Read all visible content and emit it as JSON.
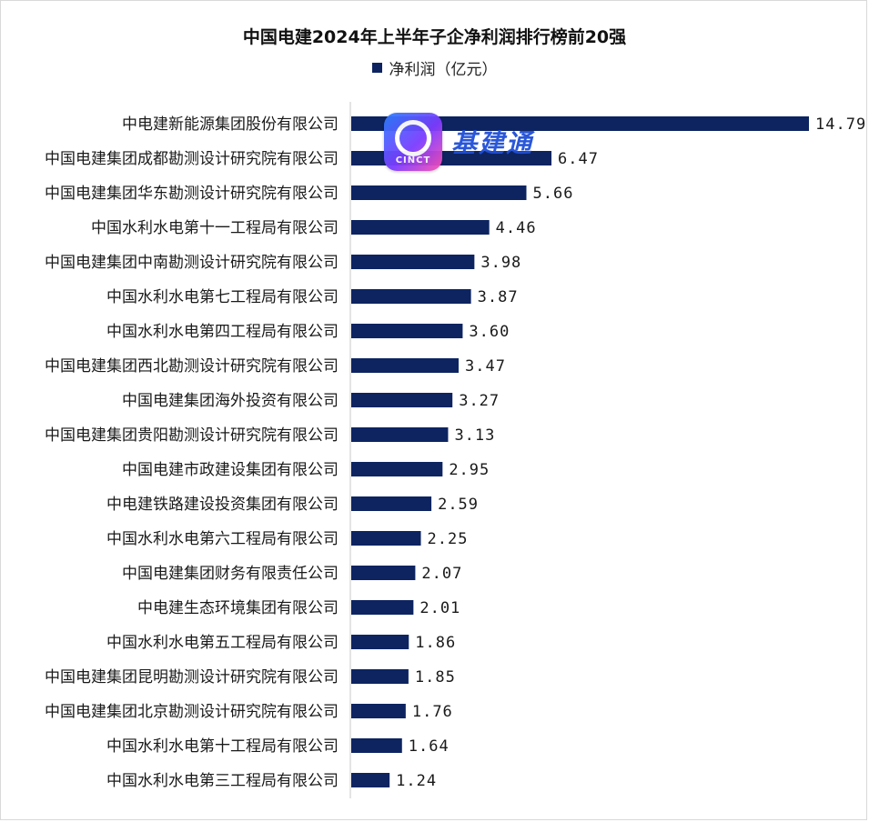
{
  "chart_data": {
    "type": "bar",
    "orientation": "horizontal",
    "title": "中国电建2024年上半年子企净利润排行榜前20强",
    "xlabel": "",
    "ylabel": "",
    "xlim": [
      0,
      14.79
    ],
    "grid": false,
    "legend_position": "top-center",
    "bar_color": "#0d2461",
    "categories": [
      "中电建新能源集团股份有限公司",
      "中国电建集团成都勘测设计研究院有限公司",
      "中国电建集团华东勘测设计研究院有限公司",
      "中国水利水电第十一工程局有限公司",
      "中国电建集团中南勘测设计研究院有限公司",
      "中国水利水电第七工程局有限公司",
      "中国水利水电第四工程局有限公司",
      "中国电建集团西北勘测设计研究院有限公司",
      "中国电建集团海外投资有限公司",
      "中国电建集团贵阳勘测设计研究院有限公司",
      "中国电建市政建设集团有限公司",
      "中电建铁路建设投资集团有限公司",
      "中国水利水电第六工程局有限公司",
      "中国电建集团财务有限责任公司",
      "中电建生态环境集团有限公司",
      "中国水利水电第五工程局有限公司",
      "中国电建集团昆明勘测设计研究院有限公司",
      "中国电建集团北京勘测设计研究院有限公司",
      "中国水利水电第十工程局有限公司",
      "中国水利水电第三工程局有限公司"
    ],
    "series": [
      {
        "name": "净利润（亿元）",
        "values": [
          14.79,
          6.47,
          5.66,
          4.46,
          3.98,
          3.87,
          3.6,
          3.47,
          3.27,
          3.13,
          2.95,
          2.59,
          2.25,
          2.07,
          2.01,
          1.86,
          1.85,
          1.76,
          1.64,
          1.24
        ],
        "labels": [
          "14.79",
          "6.47",
          "5.66",
          "4.46",
          "3.98",
          "3.87",
          "3.60",
          "3.47",
          "3.27",
          "3.13",
          "2.95",
          "2.59",
          "2.25",
          "2.07",
          "2.01",
          "1.86",
          "1.85",
          "1.76",
          "1.64",
          "1.24"
        ]
      }
    ]
  },
  "watermark": {
    "logo_text": "CINCT",
    "brand_name": "基建通",
    "logo_icon": "ring-logo-icon"
  }
}
